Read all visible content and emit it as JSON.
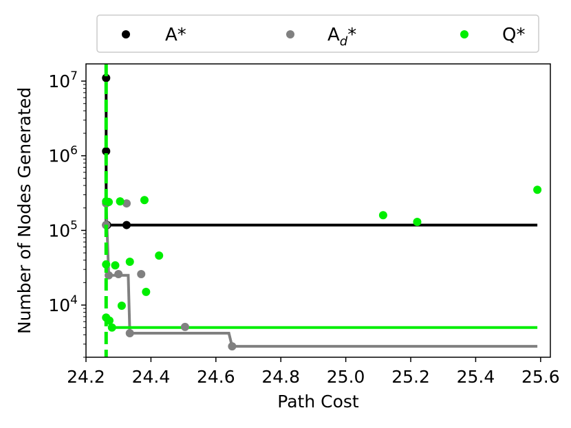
{
  "chart_data": {
    "type": "scatter",
    "title": "",
    "xlabel": "Path Cost",
    "ylabel": "Number of Nodes Generated",
    "yscale": "log",
    "xlim": [
      24.2,
      25.63
    ],
    "ylim": [
      2000,
      17000000
    ],
    "grid": false,
    "legend_placement": "top",
    "x_ticks": [
      24.2,
      24.4,
      24.6,
      24.8,
      25.0,
      25.2,
      25.4,
      25.6
    ],
    "x_tick_labels": [
      "24.2",
      "24.4",
      "24.6",
      "24.8",
      "25.0",
      "25.2",
      "25.4",
      "25.6"
    ],
    "y_ticks": [
      {
        "value": 10000,
        "base": "10",
        "exp": "4"
      },
      {
        "value": 100000,
        "base": "10",
        "exp": "5"
      },
      {
        "value": 1000000,
        "base": "10",
        "exp": "6"
      },
      {
        "value": 10000000,
        "base": "10",
        "exp": "7"
      }
    ],
    "optimal_cost": 24.262,
    "series": [
      {
        "name": "A*",
        "name_base": "A",
        "name_sub": "",
        "name_suffix": "*",
        "color": "#000000",
        "points": [
          [
            24.262,
            11000000
          ],
          [
            24.262,
            1150000
          ],
          [
            24.262,
            118000
          ],
          [
            24.265,
            118000
          ],
          [
            24.325,
            118000
          ]
        ],
        "frontier": [
          [
            24.262,
            11000000
          ],
          [
            24.262,
            1150000
          ],
          [
            24.262,
            118000
          ],
          [
            25.59,
            118000
          ]
        ]
      },
      {
        "name": "Ad*",
        "name_base": "A",
        "name_sub": "d",
        "name_suffix": "*",
        "color": "#808080",
        "points": [
          [
            24.262,
            118000
          ],
          [
            24.262,
            230000
          ],
          [
            24.27,
            25000
          ],
          [
            24.3,
            26000
          ],
          [
            24.325,
            230000
          ],
          [
            24.335,
            4200
          ],
          [
            24.37,
            26000
          ],
          [
            24.505,
            5100
          ],
          [
            24.65,
            2800
          ]
        ],
        "frontier": [
          [
            24.262,
            230000
          ],
          [
            24.27,
            25000
          ],
          [
            24.33,
            25000
          ],
          [
            24.335,
            4200
          ],
          [
            24.64,
            4200
          ],
          [
            24.65,
            2800
          ],
          [
            25.59,
            2800
          ]
        ]
      },
      {
        "name": "Q*",
        "name_base": "Q",
        "name_sub": "",
        "name_suffix": "*",
        "color": "#00ee00",
        "points": [
          [
            24.262,
            245000
          ],
          [
            24.262,
            35000
          ],
          [
            24.262,
            6800
          ],
          [
            24.27,
            240000
          ],
          [
            24.272,
            6200
          ],
          [
            24.28,
            5000
          ],
          [
            24.29,
            34000
          ],
          [
            24.305,
            245000
          ],
          [
            24.31,
            9800
          ],
          [
            24.335,
            38000
          ],
          [
            24.38,
            255000
          ],
          [
            24.385,
            15000
          ],
          [
            24.425,
            46000
          ],
          [
            25.115,
            160000
          ],
          [
            25.22,
            130000
          ],
          [
            25.59,
            350000
          ]
        ],
        "frontier": [
          [
            24.262,
            6800
          ],
          [
            24.28,
            5000
          ],
          [
            25.59,
            5000
          ]
        ]
      }
    ]
  }
}
